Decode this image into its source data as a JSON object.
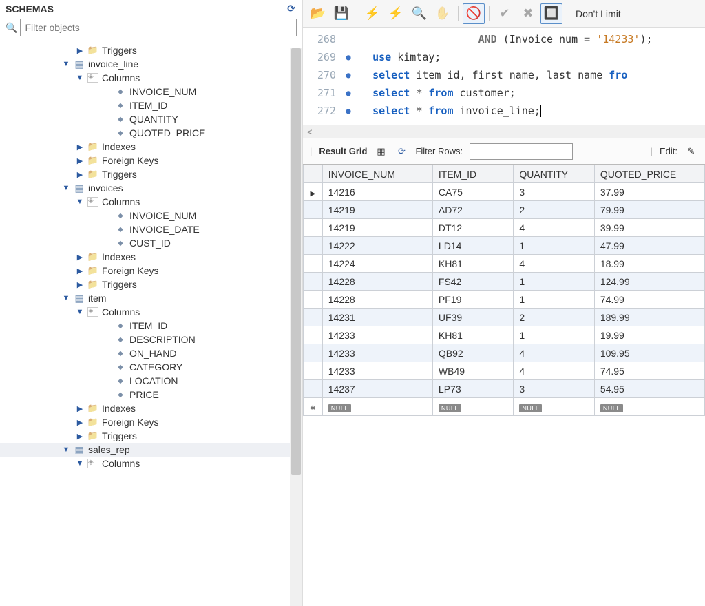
{
  "sidebar": {
    "title": "SCHEMAS",
    "filter_placeholder": "Filter objects",
    "tree": [
      {
        "indent": 3,
        "arrow": "right",
        "icon": "folder",
        "label": "Triggers"
      },
      {
        "indent": 2,
        "arrow": "down",
        "icon": "table-i",
        "label": "invoice_line"
      },
      {
        "indent": 3,
        "arrow": "down",
        "icon": "cols-i",
        "label": "Columns"
      },
      {
        "indent": 4,
        "arrow": "none",
        "icon": "diamond",
        "label": "INVOICE_NUM"
      },
      {
        "indent": 4,
        "arrow": "none",
        "icon": "diamond",
        "label": "ITEM_ID"
      },
      {
        "indent": 4,
        "arrow": "none",
        "icon": "diamond",
        "label": "QUANTITY"
      },
      {
        "indent": 4,
        "arrow": "none",
        "icon": "diamond",
        "label": "QUOTED_PRICE"
      },
      {
        "indent": 3,
        "arrow": "right",
        "icon": "folder",
        "label": "Indexes"
      },
      {
        "indent": 3,
        "arrow": "right",
        "icon": "folder",
        "label": "Foreign Keys"
      },
      {
        "indent": 3,
        "arrow": "right",
        "icon": "folder",
        "label": "Triggers"
      },
      {
        "indent": 2,
        "arrow": "down",
        "icon": "table-i",
        "label": "invoices"
      },
      {
        "indent": 3,
        "arrow": "down",
        "icon": "cols-i",
        "label": "Columns"
      },
      {
        "indent": 4,
        "arrow": "none",
        "icon": "diamond",
        "label": "INVOICE_NUM"
      },
      {
        "indent": 4,
        "arrow": "none",
        "icon": "diamond",
        "label": "INVOICE_DATE"
      },
      {
        "indent": 4,
        "arrow": "none",
        "icon": "diamond",
        "label": "CUST_ID"
      },
      {
        "indent": 3,
        "arrow": "right",
        "icon": "folder",
        "label": "Indexes"
      },
      {
        "indent": 3,
        "arrow": "right",
        "icon": "folder",
        "label": "Foreign Keys"
      },
      {
        "indent": 3,
        "arrow": "right",
        "icon": "folder",
        "label": "Triggers"
      },
      {
        "indent": 2,
        "arrow": "down",
        "icon": "table-i",
        "label": "item"
      },
      {
        "indent": 3,
        "arrow": "down",
        "icon": "cols-i",
        "label": "Columns"
      },
      {
        "indent": 4,
        "arrow": "none",
        "icon": "diamond",
        "label": "ITEM_ID"
      },
      {
        "indent": 4,
        "arrow": "none",
        "icon": "diamond",
        "label": "DESCRIPTION"
      },
      {
        "indent": 4,
        "arrow": "none",
        "icon": "diamond",
        "label": "ON_HAND"
      },
      {
        "indent": 4,
        "arrow": "none",
        "icon": "diamond",
        "label": "CATEGORY"
      },
      {
        "indent": 4,
        "arrow": "none",
        "icon": "diamond",
        "label": "LOCATION"
      },
      {
        "indent": 4,
        "arrow": "none",
        "icon": "diamond",
        "label": "PRICE"
      },
      {
        "indent": 3,
        "arrow": "right",
        "icon": "folder",
        "label": "Indexes"
      },
      {
        "indent": 3,
        "arrow": "right",
        "icon": "folder",
        "label": "Foreign Keys"
      },
      {
        "indent": 3,
        "arrow": "right",
        "icon": "folder",
        "label": "Triggers"
      },
      {
        "indent": 2,
        "arrow": "down",
        "icon": "table-i",
        "label": "sales_rep",
        "selected": true
      },
      {
        "indent": 3,
        "arrow": "down",
        "icon": "cols-i",
        "label": "Columns"
      }
    ]
  },
  "toolbar": {
    "limit_label": "Don't Limit",
    "items": [
      {
        "name": "open-file",
        "glyph": "📂",
        "framed": false
      },
      {
        "name": "save",
        "glyph": "💾",
        "framed": false
      },
      {
        "sep": true
      },
      {
        "name": "execute",
        "glyph": "⚡",
        "framed": false
      },
      {
        "name": "execute-step",
        "glyph": "⚡",
        "framed": false,
        "overlay": "I"
      },
      {
        "name": "explain",
        "glyph": "🔍",
        "framed": false
      },
      {
        "name": "stop",
        "glyph": "✋",
        "framed": false,
        "disabled": true
      },
      {
        "sep": true
      },
      {
        "name": "toggle-1",
        "glyph": "🚫",
        "framed": true
      },
      {
        "sep": true
      },
      {
        "name": "commit",
        "glyph": "✔",
        "framed": false,
        "disabled": true
      },
      {
        "name": "rollback",
        "glyph": "✖",
        "framed": false,
        "disabled": true
      },
      {
        "name": "toggle-2",
        "glyph": "🔲",
        "framed": true
      }
    ]
  },
  "editor": {
    "lines": [
      {
        "num": "268",
        "dot": false,
        "tokens": [
          {
            "cls": "tok-plain",
            "t": "                    "
          },
          {
            "cls": "kw-gray",
            "t": "AND"
          },
          {
            "cls": "tok-plain",
            "t": " (Invoice_num "
          },
          {
            "cls": "kw-gray",
            "t": "="
          },
          {
            "cls": "tok-plain",
            "t": " "
          },
          {
            "cls": "tok-str",
            "t": "'14233'"
          },
          {
            "cls": "tok-plain",
            "t": ");"
          }
        ]
      },
      {
        "num": "269",
        "dot": true,
        "tokens": [
          {
            "cls": "tok-plain",
            "t": "   "
          },
          {
            "cls": "kw-blue",
            "t": "use"
          },
          {
            "cls": "tok-plain",
            "t": " kimtay;"
          }
        ]
      },
      {
        "num": "270",
        "dot": true,
        "tokens": [
          {
            "cls": "tok-plain",
            "t": "   "
          },
          {
            "cls": "kw-blue",
            "t": "select"
          },
          {
            "cls": "tok-plain",
            "t": " item_id, first_name, last_name "
          },
          {
            "cls": "kw-blue",
            "t": "fro"
          }
        ]
      },
      {
        "num": "271",
        "dot": true,
        "tokens": [
          {
            "cls": "tok-plain",
            "t": "   "
          },
          {
            "cls": "kw-blue",
            "t": "select"
          },
          {
            "cls": "tok-plain",
            "t": " "
          },
          {
            "cls": "kw-gray",
            "t": "*"
          },
          {
            "cls": "tok-plain",
            "t": " "
          },
          {
            "cls": "kw-blue",
            "t": "from"
          },
          {
            "cls": "tok-plain",
            "t": " customer;"
          }
        ]
      },
      {
        "num": "272",
        "dot": true,
        "tokens": [
          {
            "cls": "tok-plain",
            "t": "   "
          },
          {
            "cls": "kw-blue",
            "t": "select"
          },
          {
            "cls": "tok-plain",
            "t": " "
          },
          {
            "cls": "kw-gray",
            "t": "*"
          },
          {
            "cls": "tok-plain",
            "t": " "
          },
          {
            "cls": "kw-blue",
            "t": "from"
          },
          {
            "cls": "tok-plain",
            "t": " invoice_line;"
          }
        ],
        "cursor": true
      }
    ],
    "scroll_glyph": "<"
  },
  "result_bar": {
    "label": "Result Grid",
    "filter_label": "Filter Rows:",
    "edit_label": "Edit:"
  },
  "grid": {
    "columns": [
      "INVOICE_NUM",
      "ITEM_ID",
      "QUANTITY",
      "QUOTED_PRICE"
    ],
    "rows": [
      {
        "head": "ptr",
        "cells": [
          "14216",
          "CA75",
          "3",
          "37.99"
        ]
      },
      {
        "alt": true,
        "cells": [
          "14219",
          "AD72",
          "2",
          "79.99"
        ]
      },
      {
        "cells": [
          "14219",
          "DT12",
          "4",
          "39.99"
        ]
      },
      {
        "alt": true,
        "cells": [
          "14222",
          "LD14",
          "1",
          "47.99"
        ]
      },
      {
        "cells": [
          "14224",
          "KH81",
          "4",
          "18.99"
        ]
      },
      {
        "alt": true,
        "cells": [
          "14228",
          "FS42",
          "1",
          "124.99"
        ]
      },
      {
        "cells": [
          "14228",
          "PF19",
          "1",
          "74.99"
        ]
      },
      {
        "alt": true,
        "cells": [
          "14231",
          "UF39",
          "2",
          "189.99"
        ]
      },
      {
        "cells": [
          "14233",
          "KH81",
          "1",
          "19.99"
        ]
      },
      {
        "alt": true,
        "cells": [
          "14233",
          "QB92",
          "4",
          "109.95"
        ]
      },
      {
        "cells": [
          "14233",
          "WB49",
          "4",
          "74.95"
        ]
      },
      {
        "alt": true,
        "cells": [
          "14237",
          "LP73",
          "3",
          "54.95"
        ]
      },
      {
        "head": "star",
        "nullrow": true
      }
    ],
    "null_label": "NULL",
    "col_widths": [
      "150px",
      "110px",
      "110px",
      "150px"
    ],
    "header_bg": "#f2f3f5",
    "alt_row_bg": "#eef3fa",
    "row_bg": "#ffffff",
    "border_color": "#ccd0d6"
  }
}
